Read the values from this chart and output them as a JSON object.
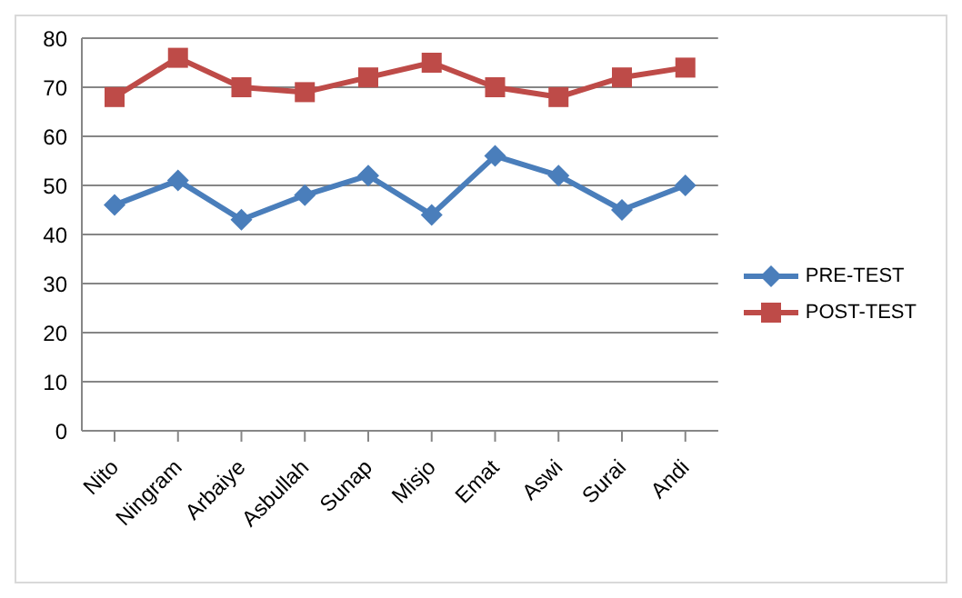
{
  "chart_data": {
    "type": "line",
    "categories": [
      "Nito",
      "Ningram",
      "Arbaiye",
      "Asbullah",
      "Sunap",
      "Misjo",
      "Emat",
      "Aswi",
      "Surai",
      "Andi"
    ],
    "series": [
      {
        "name": "PRE-TEST",
        "color": "#4a7ebb",
        "marker": "diamond",
        "values": [
          46,
          51,
          43,
          48,
          52,
          44,
          56,
          52,
          45,
          50
        ]
      },
      {
        "name": "POST-TEST",
        "color": "#be4b48",
        "marker": "square",
        "values": [
          68,
          76,
          70,
          69,
          72,
          75,
          70,
          68,
          72,
          74
        ]
      }
    ],
    "ylim": [
      0,
      80
    ],
    "yticks": [
      0,
      10,
      20,
      30,
      40,
      50,
      60,
      70,
      80
    ],
    "grid": "y",
    "legend": "right",
    "line_style": "solid"
  }
}
